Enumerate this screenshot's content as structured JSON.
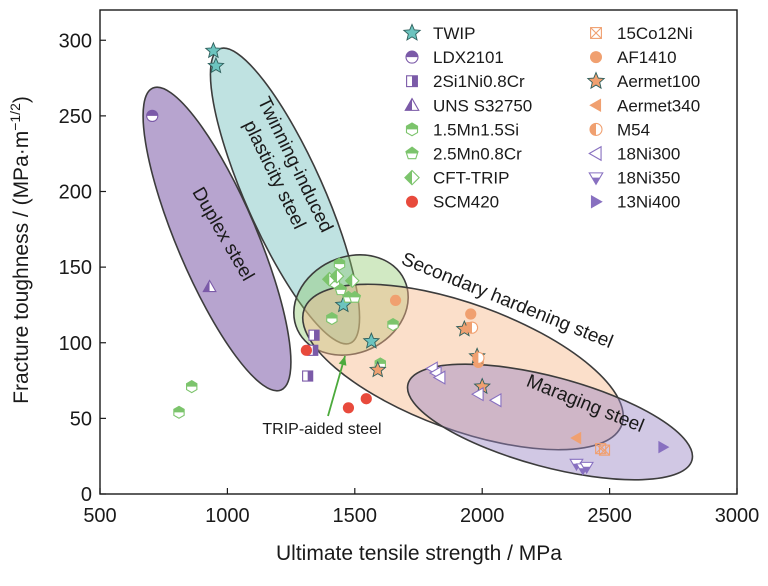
{
  "chart_data": {
    "type": "scatter",
    "title": "",
    "xlabel": "Ultimate tensile strength / MPa",
    "ylabel_main": "Fracture toughness / (MPa·m",
    "ylabel_exp": "−1/2",
    "ylabel_close": ")",
    "xlim": [
      500,
      3000
    ],
    "ylim": [
      0,
      320
    ],
    "xticks": [
      500,
      1000,
      1500,
      2000,
      2500,
      3000
    ],
    "yticks": [
      0,
      50,
      100,
      150,
      200,
      250,
      300
    ],
    "grid": false,
    "legend_position": "top-right",
    "regions": [
      {
        "label": "Duplex steel",
        "color": "#7b5aa8",
        "fill_opacity": 0.55
      },
      {
        "label": "Twinning-induced plasticity steel",
        "label_lines": [
          "Twinning-induced",
          "plasticity steel"
        ],
        "color": "#5fb7b3",
        "fill_opacity": 0.4
      },
      {
        "label": "TRIP-aided steel",
        "color": "#8cc86a",
        "fill_opacity": 0.4
      },
      {
        "label": "Secondary hardening steel",
        "color": "#f6b98a",
        "fill_opacity": 0.45
      },
      {
        "label": "Maraging steel",
        "color": "#9a86c4",
        "fill_opacity": 0.45
      }
    ],
    "series": [
      {
        "name": "TWIP",
        "marker": "star",
        "color": "#6cc4bf",
        "points": [
          [
            945,
            293
          ],
          [
            955,
            283
          ],
          [
            1455,
            125
          ],
          [
            1565,
            101
          ]
        ]
      },
      {
        "name": "LDX2101",
        "marker": "circle-half-top",
        "color": "#7b5aa8",
        "points": [
          [
            705,
            250
          ]
        ]
      },
      {
        "name": "2Si1Ni0.8Cr",
        "marker": "square-half-right",
        "color": "#7b5aa8",
        "points": [
          [
            1315,
            78
          ],
          [
            1335,
            95
          ],
          [
            1340,
            105
          ]
        ]
      },
      {
        "name": "UNS S32750",
        "marker": "triangle-half",
        "color": "#7b5aa8",
        "points": [
          [
            930,
            137
          ]
        ]
      },
      {
        "name": "1.5Mn1.5Si",
        "marker": "hexagon-half-top",
        "color": "#7cc46c",
        "points": [
          [
            810,
            54
          ],
          [
            860,
            71
          ],
          [
            1410,
            116
          ],
          [
            1420,
            140
          ],
          [
            1440,
            152
          ],
          [
            1600,
            86
          ],
          [
            1650,
            112
          ]
        ]
      },
      {
        "name": "2.5Mn0.8Cr",
        "marker": "pentagon-half-top",
        "color": "#7cc46c",
        "points": [
          [
            1445,
            135
          ],
          [
            1475,
            130
          ],
          [
            1500,
            130
          ]
        ]
      },
      {
        "name": "CFT-TRIP",
        "marker": "diamond-half",
        "color": "#7cc46c",
        "points": [
          [
            1400,
            142
          ],
          [
            1430,
            144
          ],
          [
            1490,
            141
          ]
        ]
      },
      {
        "name": "SCM420",
        "marker": "circle",
        "color": "#e84a3c",
        "points": [
          [
            1310,
            95
          ],
          [
            1475,
            57
          ],
          [
            1545,
            63
          ]
        ]
      },
      {
        "name": "15Co12Ni",
        "marker": "square-x",
        "color": "#f0a070",
        "points": [
          [
            2465,
            30
          ],
          [
            2480,
            29
          ]
        ]
      },
      {
        "name": "AF1410",
        "marker": "circle",
        "color": "#f0a070",
        "points": [
          [
            1660,
            128
          ],
          [
            1945,
            110
          ],
          [
            1955,
            119
          ],
          [
            1985,
            87
          ]
        ]
      },
      {
        "name": "Aermet100",
        "marker": "star",
        "color": "#f0a070",
        "points": [
          [
            1590,
            82
          ],
          [
            1930,
            109
          ],
          [
            1980,
            91
          ],
          [
            2000,
            71
          ]
        ]
      },
      {
        "name": "Aermet340",
        "marker": "triangle-left",
        "color": "#f0a070",
        "points": [
          [
            2370,
            37
          ]
        ]
      },
      {
        "name": "M54",
        "marker": "circle-half-left",
        "color": "#f0a070",
        "points": [
          [
            1960,
            110
          ],
          [
            1985,
            90
          ]
        ]
      },
      {
        "name": "18Ni300",
        "marker": "triangle-left-open",
        "color": "#8870c0",
        "points": [
          [
            1805,
            83
          ],
          [
            1820,
            80
          ],
          [
            1835,
            77
          ],
          [
            1985,
            66
          ],
          [
            2055,
            62
          ]
        ]
      },
      {
        "name": "18Ni350",
        "marker": "triangle-down-half",
        "color": "#8870c0",
        "points": [
          [
            2370,
            20
          ],
          [
            2395,
            17
          ],
          [
            2410,
            18
          ]
        ]
      },
      {
        "name": "13Ni400",
        "marker": "triangle-right",
        "color": "#8870c0",
        "points": [
          [
            2710,
            31
          ]
        ]
      }
    ],
    "annotations": [
      {
        "text": "TRIP-aided steel",
        "x": 1330,
        "y": 44,
        "arrow_to": [
          1570,
          94
        ]
      }
    ]
  }
}
